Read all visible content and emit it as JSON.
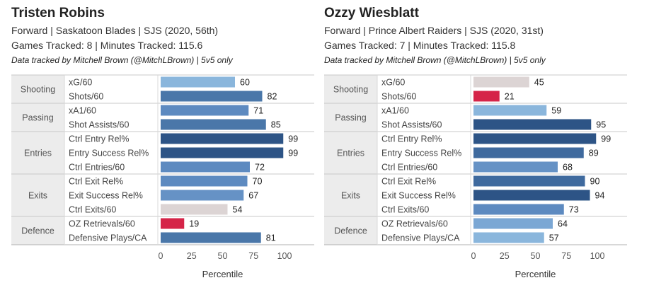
{
  "chart_data": [
    {
      "type": "bar",
      "title": "Tristen Robins",
      "subtitle_lines": [
        "Forward | Saskatoon Blades | SJS (2020, 56th)",
        "Games Tracked: 8 | Minutes Tracked: 115.6"
      ],
      "note": "Data tracked by Mitchell Brown (@MitchLBrown) | 5v5 only",
      "xlabel": "Percentile",
      "xlim": [
        0,
        100
      ],
      "xticks": [
        0,
        25,
        50,
        75,
        100
      ],
      "grid": false,
      "groups": [
        {
          "name": "Shooting",
          "metrics": [
            {
              "label": "xG/60",
              "value": 60,
              "color": "#8ab6dc"
            },
            {
              "label": "Shots/60",
              "value": 82,
              "color": "#4a77a9"
            }
          ]
        },
        {
          "name": "Passing",
          "metrics": [
            {
              "label": "xA1/60",
              "value": 71,
              "color": "#5d8ac0"
            },
            {
              "label": "Shot Assists/60",
              "value": 85,
              "color": "#4a77a9"
            }
          ]
        },
        {
          "name": "Entries",
          "metrics": [
            {
              "label": "Ctrl Entry Rel%",
              "value": 99,
              "color": "#2d5486"
            },
            {
              "label": "Entry Success Rel%",
              "value": 99,
              "color": "#2d5486"
            },
            {
              "label": "Ctrl Entries/60",
              "value": 72,
              "color": "#5d8ac0"
            }
          ]
        },
        {
          "name": "Exits",
          "metrics": [
            {
              "label": "Ctrl Exit Rel%",
              "value": 70,
              "color": "#5d8ac0"
            },
            {
              "label": "Exit Success Rel%",
              "value": 67,
              "color": "#6692c5"
            },
            {
              "label": "Ctrl Exits/60",
              "value": 54,
              "color": "#dcd4d4"
            }
          ]
        },
        {
          "name": "Defence",
          "metrics": [
            {
              "label": "OZ Retrievals/60",
              "value": 19,
              "color": "#d52448"
            },
            {
              "label": "Defensive Plays/CA",
              "value": 81,
              "color": "#4a77a9"
            }
          ]
        }
      ]
    },
    {
      "type": "bar",
      "title": "Ozzy Wiesblatt",
      "subtitle_lines": [
        "Forward | Prince Albert Raiders | SJS (2020, 31st)",
        "Games Tracked: 7 | Minutes Tracked: 115.8"
      ],
      "note": "Data tracked by Mitchell Brown (@MitchLBrown) | 5v5 only",
      "xlabel": "Percentile",
      "xlim": [
        0,
        100
      ],
      "xticks": [
        0,
        25,
        50,
        75,
        100
      ],
      "grid": false,
      "groups": [
        {
          "name": "Shooting",
          "metrics": [
            {
              "label": "xG/60",
              "value": 45,
              "color": "#dcd4d4"
            },
            {
              "label": "Shots/60",
              "value": 21,
              "color": "#d52448"
            }
          ]
        },
        {
          "name": "Passing",
          "metrics": [
            {
              "label": "xA1/60",
              "value": 59,
              "color": "#8ab6dc"
            },
            {
              "label": "Shot Assists/60",
              "value": 95,
              "color": "#2d5486"
            }
          ]
        },
        {
          "name": "Entries",
          "metrics": [
            {
              "label": "Ctrl Entry Rel%",
              "value": 99,
              "color": "#2d5486"
            },
            {
              "label": "Entry Success Rel%",
              "value": 89,
              "color": "#3f6a9e"
            },
            {
              "label": "Ctrl Entries/60",
              "value": 68,
              "color": "#6692c5"
            }
          ]
        },
        {
          "name": "Exits",
          "metrics": [
            {
              "label": "Ctrl Exit Rel%",
              "value": 90,
              "color": "#3f6a9e"
            },
            {
              "label": "Exit Success Rel%",
              "value": 94,
              "color": "#2d5486"
            },
            {
              "label": "Ctrl Exits/60",
              "value": 73,
              "color": "#5d8ac0"
            }
          ]
        },
        {
          "name": "Defence",
          "metrics": [
            {
              "label": "OZ Retrievals/60",
              "value": 64,
              "color": "#7ba7d4"
            },
            {
              "label": "Defensive Plays/CA",
              "value": 57,
              "color": "#8ab6dc"
            }
          ]
        }
      ]
    }
  ]
}
